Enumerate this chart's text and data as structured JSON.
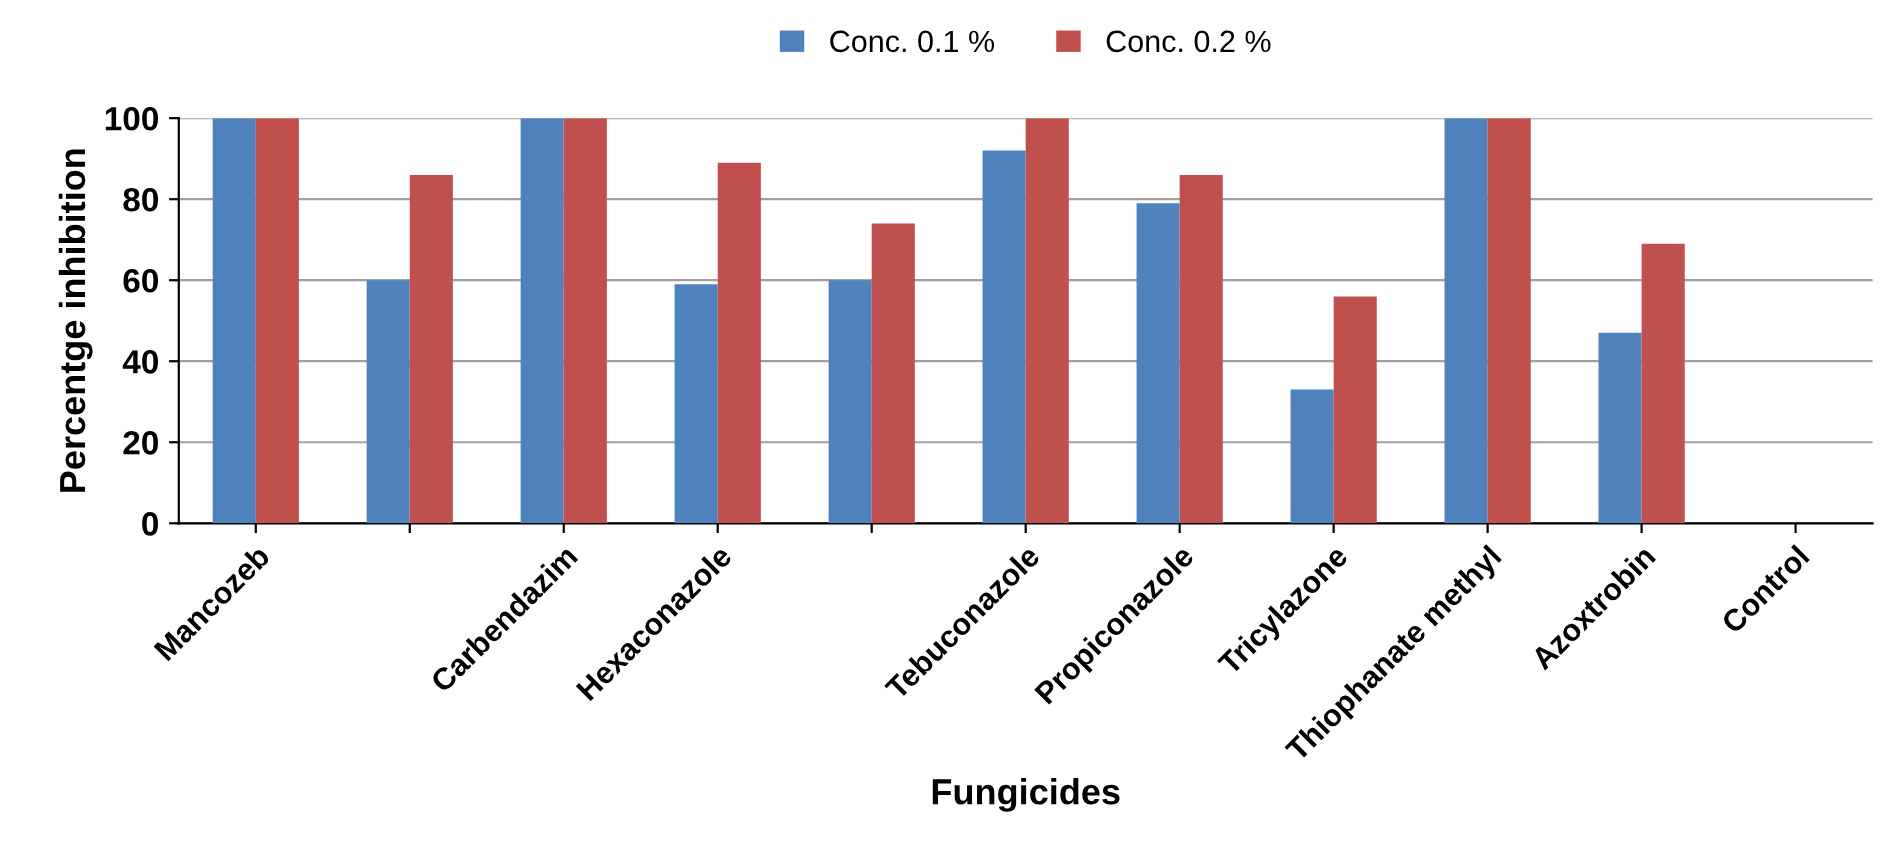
{
  "chart_data": {
    "type": "bar",
    "xlabel": "Fungicides",
    "ylabel": "Percentge inhibition",
    "categories": [
      "Mancozeb",
      null,
      "Carbendazim",
      "Hexaconazole",
      null,
      "Tebuconazole",
      "Propiconazole",
      "Tricylazone",
      "Thiophanate methyl",
      "Azoxtrobin",
      "Control"
    ],
    "series": [
      {
        "name": "Conc. 0.1 %",
        "color": "#4f81bd",
        "values": [
          100,
          60,
          100,
          59,
          60,
          92,
          79,
          33,
          100,
          47,
          0
        ]
      },
      {
        "name": "Conc. 0.2 %",
        "color": "#c0504d",
        "values": [
          100,
          86,
          100,
          89,
          74,
          100,
          86,
          56,
          100,
          69,
          0
        ]
      }
    ],
    "ylim": [
      0,
      100
    ],
    "yticks": [
      0,
      20,
      40,
      60,
      80,
      100
    ],
    "grid": "y",
    "legend": "top"
  }
}
